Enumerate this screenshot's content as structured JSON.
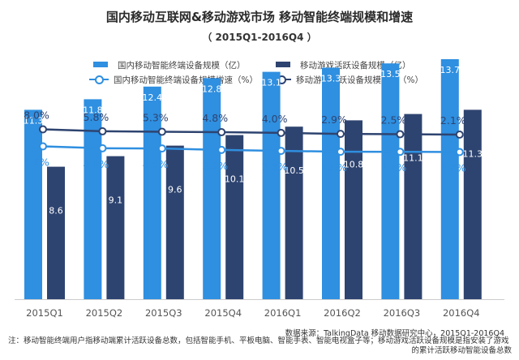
{
  "title": "国内移动互联网&移动游戏市场  移动智能终端规模和增速",
  "subtitle": "（ 2015Q1-2016Q4 ）",
  "colors": {
    "bar_light": "#2f8fe0",
    "bar_dark": "#2e4470",
    "line_light": "#2f8fe0",
    "line_dark": "#2e4470"
  },
  "legend": [
    {
      "label": "国内移动智能终端设备规模（亿）",
      "kind": "bar",
      "color": "#2f8fe0"
    },
    {
      "label": "移动游戏活跃设备规模（亿）",
      "kind": "bar",
      "color": "#2e4470"
    },
    {
      "label": "国内移动智能终端设备规模增速（%）",
      "kind": "line",
      "color": "#2f8fe0"
    },
    {
      "label": "移动游戏活跃设备规模增速（%）",
      "kind": "line",
      "color": "#2e4470"
    }
  ],
  "chart_data": {
    "type": "bar",
    "categories": [
      "2015Q1",
      "2015Q2",
      "2015Q3",
      "2015Q4",
      "2016Q1",
      "2016Q2",
      "2016Q3",
      "2016Q4"
    ],
    "series": [
      {
        "name": "国内移动智能终端设备规模（亿）",
        "type": "bar",
        "values": [
          11.3,
          11.8,
          12.4,
          12.8,
          13.1,
          13.3,
          13.5,
          13.7
        ],
        "labels": [
          "11.3",
          "11.8",
          "12.4",
          "12.8",
          "13.1",
          "13.3",
          "13.5",
          "13.7"
        ]
      },
      {
        "name": "移动游戏活跃设备规模（亿）",
        "type": "bar",
        "values": [
          8.6,
          9.1,
          9.6,
          10.1,
          10.5,
          10.8,
          11.1,
          11.3
        ],
        "labels": [
          "8.6",
          "9.1",
          "9.6",
          "10.1",
          "10.5",
          "10.8",
          "11.1",
          "11.3"
        ]
      },
      {
        "name": "国内移动智能终端设备规模增速（%）",
        "type": "line",
        "values": [
          6.6,
          4.8,
          4.6,
          3.2,
          2.3,
          1.5,
          1.4,
          1.2
        ],
        "labels": [
          "6.6%",
          "4.8%",
          "4.6%",
          "3.2%",
          "2.3%",
          "1.5%",
          "1.4%",
          "1.2%"
        ]
      },
      {
        "name": "移动游戏活跃设备规模增速（%）",
        "type": "line",
        "values": [
          8.0,
          5.8,
          5.3,
          4.8,
          4.0,
          2.9,
          2.5,
          2.1
        ],
        "labels": [
          "8.0%",
          "5.8%",
          "5.3%",
          "4.8%",
          "4.0%",
          "2.9%",
          "2.5%",
          "2.1%"
        ]
      }
    ],
    "legend_position": "top",
    "grid": false
  },
  "source": "数据来源：TalkingData 移动数据研究中心，2015Q1-2016Q4",
  "note_line1": "注：移动智能终端用户指移动端累计活跃设备总数，包括智能手机、平板电脑、智能手表、智能电视盒子等；移动游戏活跃设备规模是指安装了游戏",
  "note_line2": "的累计活跃移动智能设备总数"
}
